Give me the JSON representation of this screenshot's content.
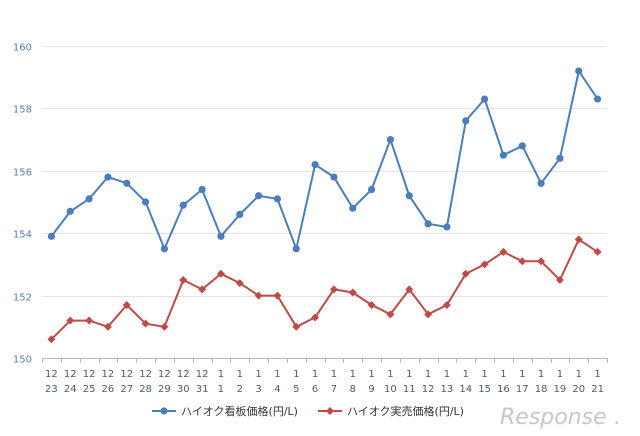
{
  "chart_data": {
    "type": "line",
    "categories": [
      [
        "12",
        "23"
      ],
      [
        "12",
        "24"
      ],
      [
        "12",
        "25"
      ],
      [
        "12",
        "26"
      ],
      [
        "12",
        "27"
      ],
      [
        "12",
        "28"
      ],
      [
        "12",
        "29"
      ],
      [
        "12",
        "30"
      ],
      [
        "12",
        "31"
      ],
      [
        "1",
        "1"
      ],
      [
        "1",
        "2"
      ],
      [
        "1",
        "3"
      ],
      [
        "1",
        "4"
      ],
      [
        "1",
        "5"
      ],
      [
        "1",
        "6"
      ],
      [
        "1",
        "7"
      ],
      [
        "1",
        "8"
      ],
      [
        "1",
        "9"
      ],
      [
        "1",
        "10"
      ],
      [
        "1",
        "11"
      ],
      [
        "1",
        "12"
      ],
      [
        "1",
        "13"
      ],
      [
        "1",
        "14"
      ],
      [
        "1",
        "15"
      ],
      [
        "1",
        "16"
      ],
      [
        "1",
        "17"
      ],
      [
        "1",
        "18"
      ],
      [
        "1",
        "19"
      ],
      [
        "1",
        "20"
      ],
      [
        "1",
        "21"
      ]
    ],
    "series": [
      {
        "name": "ハイオク看板価格(円/L)",
        "color": "#4a7ebb",
        "marker": "circle",
        "values": [
          153.9,
          154.7,
          155.1,
          155.8,
          155.6,
          155.0,
          153.5,
          154.9,
          155.4,
          153.9,
          154.6,
          155.2,
          155.1,
          153.5,
          156.2,
          155.8,
          154.8,
          155.4,
          157.0,
          155.2,
          154.3,
          154.2,
          157.6,
          158.3,
          156.5,
          156.8,
          155.6,
          156.4,
          159.2,
          158.3
        ]
      },
      {
        "name": "ハイオク実売価格(円/L)",
        "color": "#be4b48",
        "marker": "diamond",
        "values": [
          150.6,
          151.2,
          151.2,
          151.0,
          151.7,
          151.1,
          151.0,
          152.5,
          152.2,
          152.7,
          152.4,
          152.0,
          152.0,
          151.0,
          151.3,
          152.2,
          152.1,
          151.7,
          151.4,
          152.2,
          151.4,
          151.7,
          152.7,
          153.0,
          153.4,
          153.1,
          153.1,
          152.5,
          153.8,
          153.4
        ]
      }
    ],
    "ylim": [
      150,
      160
    ],
    "yticks": [
      "150",
      "152",
      "154",
      "156",
      "158",
      "160"
    ],
    "grid": true,
    "legend_position": "bottom"
  },
  "watermark": {
    "text": "Response",
    "suffix": "."
  }
}
